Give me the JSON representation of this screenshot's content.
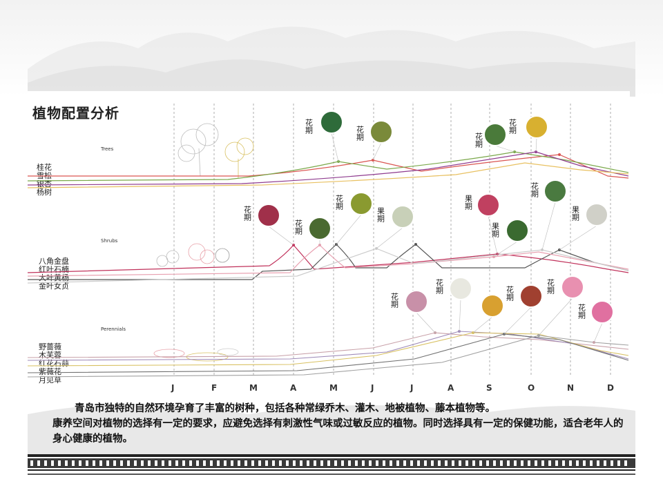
{
  "title": "植物配置分析",
  "caption": [
    "青岛市独特的自然环境孕育了丰富的树种，包括各种常绿乔木、灌木、地被植物、藤本植物等。",
    "康养空间对植物的选择有一定的要求，应避免选择有刺激性气味或过敏反应的植物。同时选择具有一定的保健功能，适合老年人的身心健康的植物。"
  ],
  "months": [
    "J",
    "F",
    "M",
    "A",
    "M",
    "J",
    "J",
    "A",
    "S",
    "O",
    "N",
    "D"
  ],
  "bands": [
    {
      "key": "trees",
      "label": "Trees",
      "plants": [
        "桂花",
        "雪松",
        "银杏",
        "杨树"
      ]
    },
    {
      "key": "shrubs",
      "label": "Shrubs",
      "plants": [
        "八角金盘",
        "红叶石楠",
        "大叶黄杨",
        "金叶女贞"
      ]
    },
    {
      "key": "perennials",
      "label": "Perennials",
      "plants": [
        "野蔷薇",
        "木芙蓉",
        "红花石蒜",
        "紫薇花",
        "月见草"
      ]
    }
  ],
  "tags": {
    "flower": "花期",
    "fruit": "果期"
  },
  "colors": {
    "trees": [
      "#d9534f",
      "#e0a030",
      "#7aa84a",
      "#8e3a8e",
      "#e8c060"
    ],
    "shrubs": [
      "#c0305a",
      "#555555",
      "#e8a0b0",
      "#b04060"
    ],
    "perennials": [
      "#9e8ab8",
      "#d8c060",
      "#c8a0a8",
      "#707070",
      "#a0a0a0"
    ],
    "accent": "#d9534f"
  }
}
